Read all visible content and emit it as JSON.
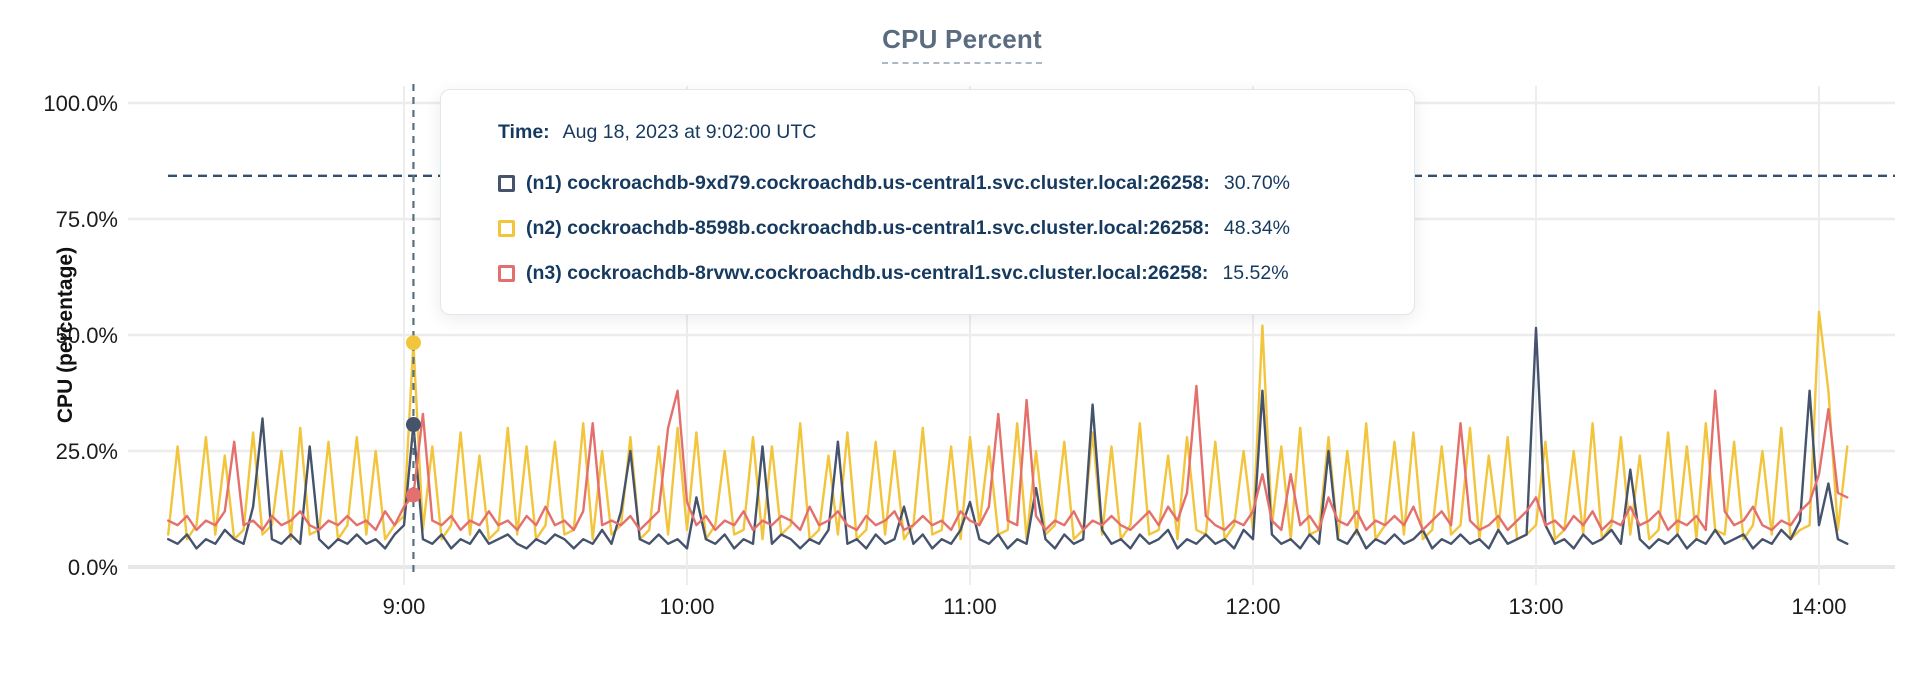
{
  "header": {
    "title": "CPU Percent"
  },
  "tooltip": {
    "time_label": "Time:",
    "time_value": "Aug 18, 2023 at 9:02:00 UTC",
    "rows": [
      {
        "label": "(n1) cockroachdb-9xd79.cockroachdb.us-central1.svc.cluster.local:26258:",
        "value": "30.70%",
        "color": "#46536d"
      },
      {
        "label": "(n2) cockroachdb-8598b.cockroachdb.us-central1.svc.cluster.local:26258:",
        "value": "48.34%",
        "color": "#f2c53d"
      },
      {
        "label": "(n3) cockroachdb-8rvwv.cockroachdb.us-central1.svc.cluster.local:26258:",
        "value": "15.52%",
        "color": "#e3706d"
      }
    ]
  },
  "chart_data": {
    "type": "line",
    "title": "CPU Percent",
    "ylabel": "CPU (percentage)",
    "ylim": [
      0,
      100
    ],
    "grid": true,
    "legend_position": "tooltip",
    "y_ticks": [
      {
        "label": "100.0%",
        "value": 100
      },
      {
        "label": "75.0%",
        "value": 75
      },
      {
        "label": "50.0%",
        "value": 50
      },
      {
        "label": "25.0%",
        "value": 25
      },
      {
        "label": "0.0%",
        "value": 0
      }
    ],
    "x_ticks": [
      {
        "label": "9:00",
        "min": 540
      },
      {
        "label": "10:00",
        "min": 600
      },
      {
        "label": "11:00",
        "min": 660
      },
      {
        "label": "12:00",
        "min": 720
      },
      {
        "label": "13:00",
        "min": 780
      },
      {
        "label": "14:00",
        "min": 840
      }
    ],
    "threshold_line": {
      "value": 84.3,
      "style": "dashed",
      "color": "#31506e"
    },
    "crosshair": {
      "time_min": 542,
      "time_label": "Aug 18, 2023 at 9:02:00 UTC",
      "values": {
        "n1": 30.7,
        "n2": 48.34,
        "n3": 15.52
      }
    },
    "x_start_min": 490,
    "x_step_min": 2,
    "series": [
      {
        "id": "n1",
        "name": "cockroachdb-9xd79.cockroachdb.us-central1.svc.cluster.local:26258",
        "color": "#46536d",
        "values": [
          6,
          5,
          7,
          4,
          6,
          5,
          8,
          6,
          5,
          13,
          32,
          6,
          5,
          7,
          5,
          26,
          6,
          4,
          6,
          5,
          7,
          5,
          6,
          4,
          7,
          9,
          30.7,
          6,
          5,
          7,
          4,
          6,
          5,
          8,
          5,
          6,
          7,
          5,
          4,
          6,
          5,
          7,
          6,
          4,
          6,
          5,
          8,
          5,
          12,
          25,
          6,
          5,
          7,
          5,
          6,
          4,
          15,
          6,
          5,
          7,
          4,
          6,
          5,
          26,
          5,
          7,
          6,
          4,
          6,
          5,
          8,
          27,
          5,
          6,
          4,
          7,
          5,
          6,
          13,
          5,
          7,
          4,
          6,
          5,
          8,
          14,
          6,
          5,
          7,
          4,
          6,
          5,
          17,
          6,
          4,
          7,
          5,
          6,
          35,
          8,
          5,
          6,
          4,
          7,
          5,
          6,
          8,
          4,
          6,
          5,
          7,
          5,
          6,
          4,
          8,
          6,
          38,
          7,
          5,
          6,
          4,
          7,
          5,
          25,
          6,
          5,
          8,
          4,
          6,
          5,
          7,
          5,
          6,
          8,
          4,
          6,
          5,
          7,
          5,
          6,
          4,
          8,
          5,
          6,
          7,
          51.5,
          9,
          5,
          6,
          4,
          7,
          5,
          6,
          8,
          5,
          21,
          6,
          4,
          6,
          5,
          7,
          4,
          6,
          5,
          8,
          5,
          6,
          7,
          4,
          6,
          5,
          8,
          6,
          10,
          38,
          9,
          18,
          6,
          5
        ]
      },
      {
        "id": "n2",
        "name": "cockroachdb-8598b.cockroachdb.us-central1.svc.cluster.local:26258",
        "color": "#f2c53d",
        "values": [
          7,
          26,
          6,
          9,
          28,
          7,
          24,
          6,
          8,
          29,
          7,
          9,
          25,
          6,
          30,
          7,
          8,
          27,
          6,
          9,
          28,
          7,
          25,
          6,
          9,
          11,
          48.3,
          8,
          26,
          6,
          9,
          29,
          7,
          24,
          6,
          8,
          30,
          7,
          26,
          6,
          9,
          27,
          7,
          8,
          31,
          6,
          25,
          7,
          9,
          28,
          6,
          8,
          26,
          7,
          30,
          8,
          29,
          6,
          9,
          25,
          7,
          8,
          28,
          6,
          26,
          7,
          9,
          31,
          6,
          8,
          24,
          7,
          29,
          6,
          8,
          27,
          7,
          25,
          6,
          9,
          30,
          7,
          8,
          26,
          6,
          28,
          9,
          26,
          7,
          8,
          31,
          6,
          25,
          7,
          9,
          27,
          6,
          8,
          29,
          7,
          26,
          6,
          9,
          31,
          7,
          8,
          24,
          6,
          28,
          8,
          7,
          27,
          6,
          9,
          25,
          8,
          52,
          9,
          26,
          6,
          30,
          7,
          8,
          28,
          6,
          25,
          7,
          31,
          6,
          9,
          27,
          7,
          29,
          6,
          8,
          26,
          7,
          9,
          30,
          6,
          24,
          8,
          28,
          6,
          7,
          9,
          27,
          6,
          8,
          25,
          7,
          31,
          6,
          9,
          28,
          7,
          24,
          6,
          8,
          29,
          7,
          26,
          6,
          31,
          8,
          7,
          27,
          6,
          9,
          25,
          7,
          30,
          6,
          8,
          9,
          55,
          38,
          8,
          26
        ]
      },
      {
        "id": "n3",
        "name": "cockroachdb-8rvwv.cockroachdb.us-central1.svc.cluster.local:26258",
        "color": "#e3706d",
        "values": [
          10,
          9,
          11,
          8,
          10,
          9,
          12,
          27,
          9,
          10,
          8,
          11,
          9,
          10,
          12,
          9,
          8,
          10,
          9,
          11,
          9,
          10,
          8,
          12,
          9,
          13,
          15.5,
          33,
          10,
          9,
          11,
          8,
          10,
          9,
          12,
          9,
          10,
          8,
          11,
          9,
          13,
          9,
          10,
          8,
          12,
          31,
          9,
          10,
          9,
          11,
          8,
          10,
          12,
          30,
          38,
          14,
          9,
          11,
          8,
          10,
          9,
          12,
          8,
          10,
          9,
          11,
          10,
          8,
          13,
          9,
          10,
          12,
          9,
          8,
          11,
          9,
          10,
          12,
          8,
          9,
          11,
          9,
          10,
          8,
          12,
          10,
          9,
          13,
          33,
          10,
          9,
          36,
          11,
          8,
          10,
          9,
          12,
          8,
          10,
          9,
          11,
          9,
          8,
          10,
          12,
          9,
          13,
          10,
          16,
          39,
          11,
          9,
          8,
          10,
          9,
          12,
          20,
          10,
          8,
          20,
          9,
          11,
          8,
          15,
          10,
          9,
          12,
          8,
          10,
          9,
          11,
          9,
          13,
          8,
          10,
          12,
          9,
          31,
          10,
          8,
          9,
          11,
          8,
          10,
          12,
          15,
          9,
          10,
          8,
          11,
          9,
          12,
          8,
          10,
          9,
          13,
          9,
          10,
          12,
          8,
          10,
          9,
          11,
          8,
          38,
          12,
          9,
          10,
          13,
          9,
          8,
          10,
          9,
          12,
          14,
          20,
          34,
          16,
          15
        ]
      }
    ]
  }
}
